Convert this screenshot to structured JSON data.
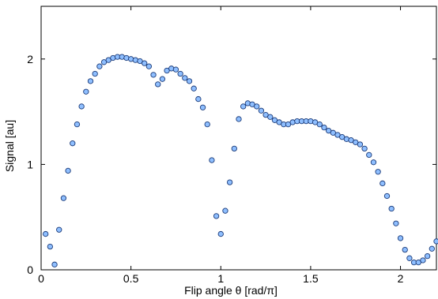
{
  "chart_data": {
    "type": "scatter",
    "title": "",
    "xlabel": "Flip angle θ [rad/π]",
    "ylabel": "Signal [au]",
    "xlim": [
      0,
      2.2
    ],
    "ylim": [
      0,
      2.5
    ],
    "xticks": [
      0,
      0.5,
      1,
      1.5,
      2
    ],
    "xtick_labels": [
      "0",
      "0.5",
      "1",
      "1.5",
      "2"
    ],
    "yticks": [
      0,
      1,
      2
    ],
    "ytick_labels": [
      "0",
      "1",
      "2"
    ],
    "grid": false,
    "marker": {
      "fill": "#8fbfff",
      "stroke": "#1a3a78"
    },
    "series": [
      {
        "x": [
          0.025,
          0.05,
          0.075,
          0.1,
          0.125,
          0.15,
          0.175,
          0.2,
          0.225,
          0.25,
          0.275,
          0.3,
          0.325,
          0.35,
          0.375,
          0.4,
          0.425,
          0.45,
          0.475,
          0.5,
          0.525,
          0.55,
          0.575,
          0.6,
          0.625,
          0.65,
          0.675,
          0.7,
          0.725,
          0.75,
          0.775,
          0.8,
          0.825,
          0.85,
          0.875,
          0.9,
          0.925,
          0.95,
          0.975,
          1.0,
          1.025,
          1.05,
          1.075,
          1.1,
          1.125,
          1.15,
          1.175,
          1.2,
          1.225,
          1.25,
          1.275,
          1.3,
          1.325,
          1.35,
          1.375,
          1.4,
          1.425,
          1.45,
          1.475,
          1.5,
          1.525,
          1.55,
          1.575,
          1.6,
          1.625,
          1.65,
          1.675,
          1.7,
          1.725,
          1.75,
          1.775,
          1.8,
          1.825,
          1.85,
          1.875,
          1.9,
          1.925,
          1.95,
          1.975,
          2.0,
          2.025,
          2.05,
          2.075,
          2.1,
          2.125,
          2.15,
          2.175,
          2.2
        ],
        "y": [
          0.34,
          0.22,
          0.05,
          0.38,
          0.68,
          0.94,
          1.2,
          1.38,
          1.55,
          1.69,
          1.79,
          1.86,
          1.93,
          1.97,
          1.99,
          2.01,
          2.02,
          2.02,
          2.01,
          2.0,
          1.99,
          1.98,
          1.96,
          1.93,
          1.85,
          1.76,
          1.81,
          1.89,
          1.91,
          1.9,
          1.86,
          1.82,
          1.79,
          1.72,
          1.62,
          1.54,
          1.38,
          1.04,
          0.51,
          0.34,
          0.56,
          0.83,
          1.15,
          1.43,
          1.55,
          1.58,
          1.57,
          1.55,
          1.51,
          1.47,
          1.45,
          1.42,
          1.4,
          1.38,
          1.38,
          1.4,
          1.41,
          1.41,
          1.41,
          1.41,
          1.4,
          1.38,
          1.35,
          1.32,
          1.3,
          1.28,
          1.26,
          1.24,
          1.23,
          1.21,
          1.19,
          1.15,
          1.09,
          1.02,
          0.93,
          0.82,
          0.7,
          0.58,
          0.44,
          0.3,
          0.19,
          0.11,
          0.07,
          0.07,
          0.09,
          0.13,
          0.2,
          0.27
        ]
      }
    ]
  }
}
